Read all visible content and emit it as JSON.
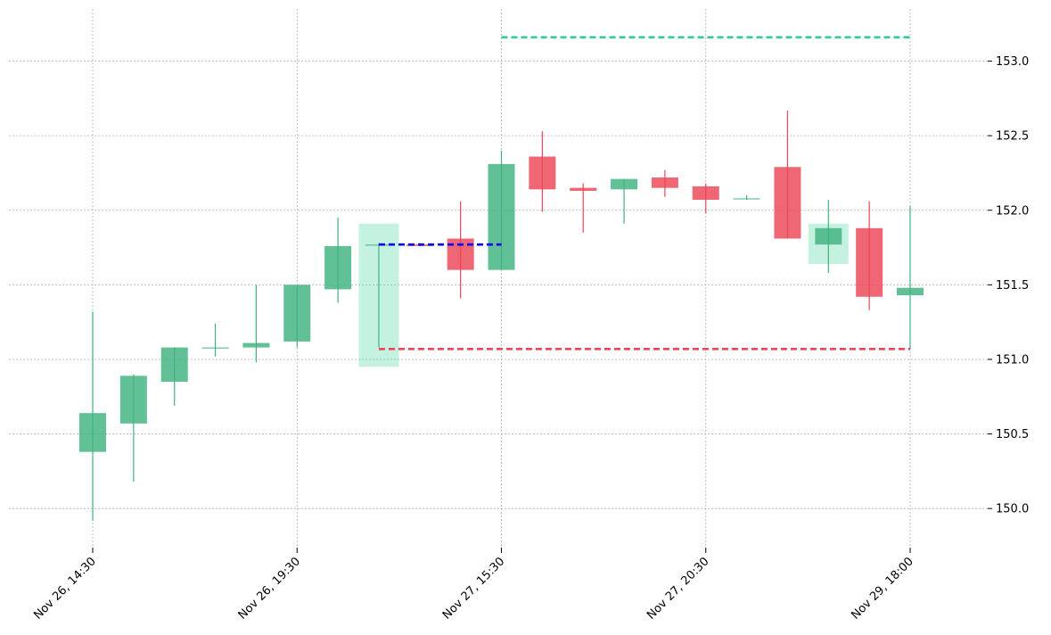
{
  "chart_data": {
    "type": "candlestick",
    "title": "",
    "xlabel": "",
    "ylabel": "",
    "ylim": [
      149.75,
      153.35
    ],
    "y_ticks": [
      150.0,
      150.5,
      151.0,
      151.5,
      152.0,
      152.5,
      153.0
    ],
    "y_tick_labels": [
      "150.0",
      "150.5",
      "151.0",
      "151.5",
      "152.0",
      "152.5",
      "153.0"
    ],
    "y_axis_side": "right",
    "x_tick_labels": [
      {
        "index": 0,
        "label": "Nov 26, 14:30"
      },
      {
        "index": 5,
        "label": "Nov 26, 19:30"
      },
      {
        "index": 10,
        "label": "Nov 27, 15:30"
      },
      {
        "index": 15,
        "label": "Nov 27, 20:30"
      },
      {
        "index": 20,
        "label": "Nov 29, 18:00"
      }
    ],
    "grid": true,
    "up_color": "#3fb27f",
    "down_color": "#ec4656",
    "highlight_color": "#2ecc8f",
    "candles": [
      {
        "index": 0,
        "open": 150.38,
        "high": 151.32,
        "low": 149.92,
        "close": 150.64
      },
      {
        "index": 1,
        "open": 150.57,
        "high": 150.9,
        "low": 150.18,
        "close": 150.89
      },
      {
        "index": 2,
        "open": 150.85,
        "high": 151.08,
        "low": 150.69,
        "close": 151.08
      },
      {
        "index": 3,
        "open": 151.08,
        "high": 151.24,
        "low": 151.02,
        "close": 151.08
      },
      {
        "index": 4,
        "open": 151.08,
        "high": 151.5,
        "low": 150.98,
        "close": 151.11
      },
      {
        "index": 5,
        "open": 151.12,
        "high": 151.49,
        "low": 151.08,
        "close": 151.5
      },
      {
        "index": 6,
        "open": 151.47,
        "high": 151.95,
        "low": 151.38,
        "close": 151.76
      },
      {
        "index": 7,
        "open": 151.77,
        "high": 151.78,
        "low": 151.08,
        "close": 151.77
      },
      {
        "index": 8,
        "open": 151.77,
        "high": 151.78,
        "low": 151.76,
        "close": 151.76
      },
      {
        "index": 9,
        "open": 151.81,
        "high": 152.06,
        "low": 151.41,
        "close": 151.6
      },
      {
        "index": 10,
        "open": 151.6,
        "high": 152.4,
        "low": 151.6,
        "close": 152.31
      },
      {
        "index": 11,
        "open": 152.36,
        "high": 152.53,
        "low": 151.99,
        "close": 152.14
      },
      {
        "index": 12,
        "open": 152.15,
        "high": 152.18,
        "low": 151.85,
        "close": 152.13
      },
      {
        "index": 13,
        "open": 152.14,
        "high": 152.21,
        "low": 151.91,
        "close": 152.21
      },
      {
        "index": 14,
        "open": 152.22,
        "high": 152.27,
        "low": 152.09,
        "close": 152.15
      },
      {
        "index": 15,
        "open": 152.16,
        "high": 152.18,
        "low": 151.98,
        "close": 152.07
      },
      {
        "index": 16,
        "open": 152.08,
        "high": 152.1,
        "low": 152.07,
        "close": 152.08
      },
      {
        "index": 17,
        "open": 152.29,
        "high": 152.67,
        "low": 151.81,
        "close": 151.81
      },
      {
        "index": 18,
        "open": 151.77,
        "high": 152.07,
        "low": 151.58,
        "close": 151.88
      },
      {
        "index": 19,
        "open": 151.88,
        "high": 152.06,
        "low": 151.33,
        "close": 151.42
      },
      {
        "index": 20,
        "open": 151.43,
        "high": 152.03,
        "low": 151.07,
        "close": 151.48
      }
    ],
    "highlight_zones": [
      {
        "index": 7,
        "low": 150.95,
        "high": 151.91
      },
      {
        "index": 18,
        "low": 151.64,
        "high": 151.91
      }
    ],
    "reference_lines": [
      {
        "name_hint": "entry",
        "value": 151.77,
        "from_index": 7,
        "to_index": 10,
        "color": "#0000ff"
      },
      {
        "name_hint": "target",
        "value": 153.16,
        "from_index": 10,
        "to_index": 20,
        "color": "#2ecc8f"
      },
      {
        "name_hint": "stop",
        "value": 151.07,
        "from_index": 7,
        "to_index": 20,
        "color": "#ec4656"
      }
    ]
  }
}
